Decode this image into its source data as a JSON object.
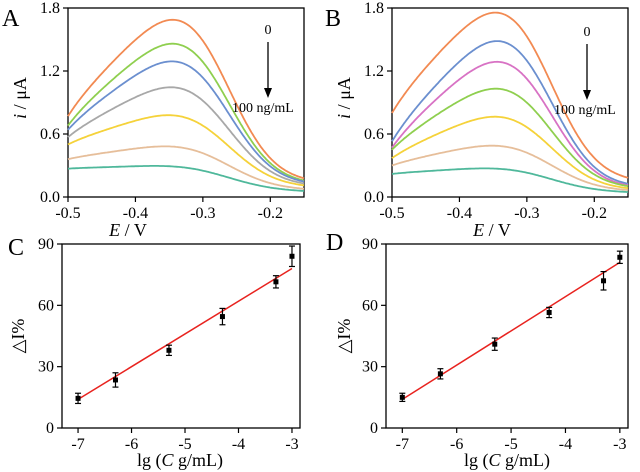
{
  "chart_data": [
    {
      "panel": "A",
      "type": "line",
      "xlabel_var": "E",
      "xlabel_unit": " / V",
      "ylabel_var": "i",
      "ylabel_unit": " / μA",
      "xlim": [
        -0.5,
        -0.15
      ],
      "ylim": [
        0,
        1.8
      ],
      "xticks": [
        -0.5,
        -0.4,
        -0.3,
        -0.2
      ],
      "xtick_labels": [
        "-0.5",
        "-0.4",
        "-0.3",
        "-0.2"
      ],
      "yticks": [
        0,
        0.6,
        1.2,
        1.8
      ],
      "ytick_labels": [
        "0.0",
        "0.6",
        "1.2",
        "1.8"
      ],
      "annotation_top": "0",
      "annotation_bottom": "100 ng/mL",
      "peak_x": -0.338,
      "series": [
        {
          "color": "#f28a52",
          "start": 0.77,
          "peak": 1.7
        },
        {
          "color": "#8fcf4f",
          "start": 0.68,
          "peak": 1.47
        },
        {
          "color": "#6b8fcf",
          "start": 0.64,
          "peak": 1.3
        },
        {
          "color": "#a8a8a8",
          "start": 0.57,
          "peak": 1.05
        },
        {
          "color": "#f5d23a",
          "start": 0.5,
          "peak": 0.78
        },
        {
          "color": "#e6be9a",
          "start": 0.36,
          "peak": 0.48
        },
        {
          "color": "#4fb89b",
          "start": 0.27,
          "peak": 0.29
        }
      ]
    },
    {
      "panel": "B",
      "type": "line",
      "xlabel_var": "E",
      "xlabel_unit": " / V",
      "ylabel_var": "i",
      "ylabel_unit": " / μA",
      "xlim": [
        -0.5,
        -0.15
      ],
      "ylim": [
        0,
        1.8
      ],
      "xticks": [
        -0.5,
        -0.4,
        -0.3,
        -0.2
      ],
      "xtick_labels": [
        "-0.5",
        "-0.4",
        "-0.3",
        "-0.2"
      ],
      "yticks": [
        0,
        0.6,
        1.2,
        1.8
      ],
      "ytick_labels": [
        "0.0",
        "0.6",
        "1.2",
        "1.8"
      ],
      "annotation_top": "0",
      "annotation_bottom": "100 ng/mL",
      "peak_x": -0.34,
      "series": [
        {
          "color": "#f28a52",
          "start": 0.8,
          "peak": 1.77
        },
        {
          "color": "#6b8fcf",
          "start": 0.53,
          "peak": 1.5
        },
        {
          "color": "#d872c4",
          "start": 0.47,
          "peak": 1.3
        },
        {
          "color": "#8fcf4f",
          "start": 0.45,
          "peak": 1.04
        },
        {
          "color": "#f5d23a",
          "start": 0.37,
          "peak": 0.77
        },
        {
          "color": "#e6be9a",
          "start": 0.3,
          "peak": 0.49
        },
        {
          "color": "#4fb89b",
          "start": 0.22,
          "peak": 0.27
        }
      ]
    },
    {
      "panel": "C",
      "type": "scatter",
      "xlabel_pre": "lg (",
      "xlabel_var": "C",
      "xlabel_post": " g/mL)",
      "ylabel": "△I%",
      "xlim": [
        -7.3,
        -2.85
      ],
      "ylim": [
        0,
        90
      ],
      "xticks": [
        -7,
        -6,
        -5,
        -4,
        -3
      ],
      "xtick_labels": [
        "-7",
        "-6",
        "-5",
        "-4",
        "-3"
      ],
      "yticks": [
        0,
        30,
        60,
        90
      ],
      "ytick_labels": [
        "0",
        "30",
        "60",
        "90"
      ],
      "points": [
        {
          "x": -7.0,
          "y": 14.5,
          "err": 2.5
        },
        {
          "x": -6.3,
          "y": 23.5,
          "err": 3.5
        },
        {
          "x": -5.3,
          "y": 38.0,
          "err": 2.5
        },
        {
          "x": -4.3,
          "y": 54.5,
          "err": 4.0
        },
        {
          "x": -3.3,
          "y": 71.5,
          "err": 3.0
        },
        {
          "x": -3.0,
          "y": 84.0,
          "err": 5.0
        }
      ],
      "fit": {
        "x": [
          -7.0,
          -3.0
        ],
        "y": [
          14.0,
          78.0
        ],
        "color": "#e8231f"
      }
    },
    {
      "panel": "D",
      "type": "scatter",
      "xlabel_pre": "lg (",
      "xlabel_var": "C",
      "xlabel_post": " g/mL)",
      "ylabel": "△I%",
      "xlim": [
        -7.3,
        -2.85
      ],
      "ylim": [
        0,
        90
      ],
      "xticks": [
        -7,
        -6,
        -5,
        -4,
        -3
      ],
      "xtick_labels": [
        "-7",
        "-6",
        "-5",
        "-4",
        "-3"
      ],
      "yticks": [
        0,
        30,
        60,
        90
      ],
      "ytick_labels": [
        "0",
        "30",
        "60",
        "90"
      ],
      "points": [
        {
          "x": -7.0,
          "y": 15.0,
          "err": 2.0
        },
        {
          "x": -6.3,
          "y": 26.5,
          "err": 2.5
        },
        {
          "x": -5.3,
          "y": 41.0,
          "err": 3.0
        },
        {
          "x": -4.3,
          "y": 56.5,
          "err": 2.5
        },
        {
          "x": -3.3,
          "y": 72.0,
          "err": 4.5
        },
        {
          "x": -3.0,
          "y": 83.5,
          "err": 3.0
        }
      ],
      "fit": {
        "x": [
          -7.0,
          -3.0
        ],
        "y": [
          14.0,
          81.0
        ],
        "color": "#e8231f"
      }
    }
  ]
}
